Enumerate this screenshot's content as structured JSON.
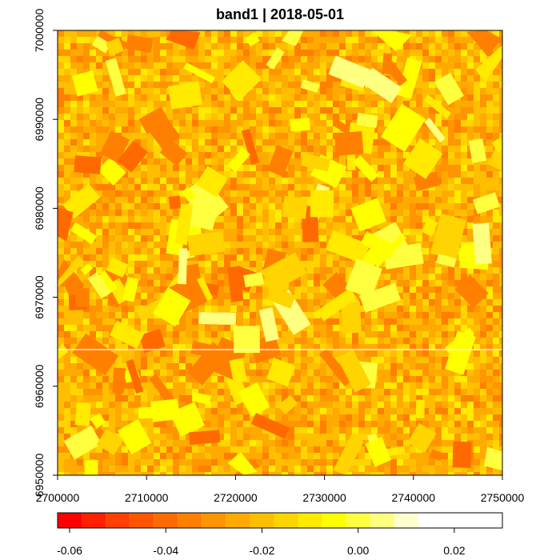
{
  "title": "band1 | 2018-05-01",
  "chart_data": {
    "type": "heatmap",
    "title": "band1 | 2018-05-01",
    "x_ticks": [
      2700000,
      2710000,
      2720000,
      2730000,
      2740000,
      2750000
    ],
    "y_ticks": [
      6950000,
      6960000,
      6970000,
      6980000,
      6990000,
      7000000
    ],
    "x_tick_labels": [
      "2700000",
      "2710000",
      "2720000",
      "2730000",
      "2740000",
      "2750000"
    ],
    "y_tick_labels": [
      "6950000",
      "6960000",
      "6970000",
      "6980000",
      "6990000",
      "7000000"
    ],
    "xlim": [
      2700000,
      2750000
    ],
    "ylim": [
      6950000,
      7000000
    ],
    "colorbar": {
      "breaks": [
        -0.0625,
        -0.0575,
        -0.0525,
        -0.0475,
        -0.0425,
        -0.0375,
        -0.0325,
        -0.0275,
        -0.0225,
        -0.0175,
        -0.0125,
        -0.0075,
        -0.0025,
        0.0025,
        0.0075,
        0.0125,
        0.0175,
        0.0225,
        0.0275,
        0.03
      ],
      "colors": [
        "#ff0000",
        "#ff2000",
        "#ff4000",
        "#ff5500",
        "#ff6a00",
        "#ff8000",
        "#ff9500",
        "#ffaa00",
        "#ffbf00",
        "#ffd400",
        "#ffea00",
        "#ffff00",
        "#ffff40",
        "#ffff80",
        "#ffffcc"
      ],
      "tick_values": [
        -0.06,
        -0.04,
        -0.02,
        0.0,
        0.02
      ],
      "tick_labels": [
        "-0.06",
        "-0.04",
        "-0.02",
        "0.00",
        "0.02"
      ]
    },
    "grid": false,
    "legend": "bottom colorbar"
  }
}
